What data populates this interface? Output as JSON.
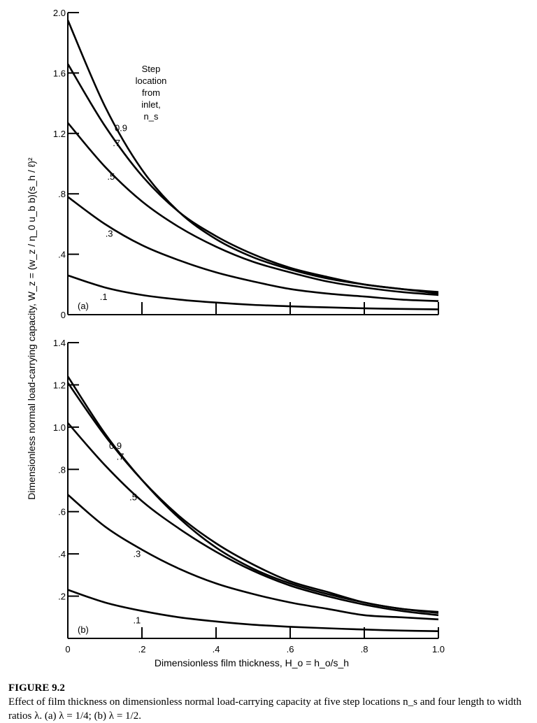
{
  "y_axis_label": "Dimensionless normal load-carrying capacity, W_z = (w_z / η_0 u_b b)(s_h / ℓ)²",
  "caption": {
    "heading": "FIGURE 9.2",
    "text": "Effect of film thickness on dimensionless normal load-carrying capacity at five step locations n_s and four length to width ratios λ. (a) λ = 1/4; (b) λ = 1/2."
  },
  "chart_data": [
    {
      "type": "line",
      "panel_label": "(a)",
      "legend_title": [
        "Step",
        "location",
        "from",
        "inlet,",
        "n_s"
      ],
      "xlim": [
        0,
        1.0
      ],
      "ylim": [
        0,
        2.0
      ],
      "x_ticks": [
        0.2,
        0.4,
        0.6,
        0.8
      ],
      "y_ticks": [
        "0",
        ".4",
        ".8",
        "1.2",
        "1.6",
        "2.0"
      ],
      "y_tick_values": [
        0,
        0.4,
        0.8,
        1.2,
        1.6,
        2.0
      ],
      "grid": false,
      "series": [
        {
          "name": "0.9",
          "x": [
            0,
            0.1,
            0.2,
            0.3,
            0.4,
            0.5,
            0.6,
            0.7,
            0.8,
            0.9,
            1.0
          ],
          "y": [
            1.95,
            1.38,
            0.96,
            0.68,
            0.5,
            0.38,
            0.3,
            0.24,
            0.2,
            0.17,
            0.15
          ]
        },
        {
          "name": ".7",
          "x": [
            0,
            0.1,
            0.2,
            0.3,
            0.4,
            0.5,
            0.6,
            0.7,
            0.8,
            0.9,
            1.0
          ],
          "y": [
            1.66,
            1.25,
            0.92,
            0.68,
            0.52,
            0.4,
            0.31,
            0.25,
            0.2,
            0.17,
            0.14
          ]
        },
        {
          "name": ".5",
          "x": [
            0,
            0.1,
            0.2,
            0.3,
            0.4,
            0.5,
            0.6,
            0.7,
            0.8,
            0.9,
            1.0
          ],
          "y": [
            1.27,
            0.98,
            0.75,
            0.58,
            0.45,
            0.35,
            0.28,
            0.22,
            0.18,
            0.15,
            0.13
          ]
        },
        {
          "name": ".3",
          "x": [
            0,
            0.1,
            0.2,
            0.3,
            0.4,
            0.5,
            0.6,
            0.7,
            0.8,
            0.9,
            1.0
          ],
          "y": [
            0.78,
            0.6,
            0.46,
            0.36,
            0.28,
            0.22,
            0.17,
            0.14,
            0.12,
            0.1,
            0.09
          ]
        },
        {
          "name": ".1",
          "x": [
            0,
            0.1,
            0.2,
            0.3,
            0.4,
            0.5,
            0.6,
            0.7,
            0.8,
            0.9,
            1.0
          ],
          "y": [
            0.26,
            0.18,
            0.13,
            0.1,
            0.08,
            0.065,
            0.055,
            0.048,
            0.042,
            0.038,
            0.035
          ]
        }
      ],
      "label_positions_x": {
        "0.9": 0.115,
        ".7": 0.11,
        ".5": 0.095,
        ".3": 0.09,
        ".1": 0.075
      }
    },
    {
      "type": "line",
      "panel_label": "(b)",
      "xlabel": "Dimensionless film thickness, H_o = h_o/s_h",
      "xlim": [
        0,
        1.0
      ],
      "ylim": [
        0,
        1.4
      ],
      "x_ticks": [
        "0",
        ".2",
        ".4",
        ".6",
        ".8",
        "1.0"
      ],
      "x_tick_values": [
        0,
        0.2,
        0.4,
        0.6,
        0.8,
        1.0
      ],
      "y_ticks": [
        ".2",
        ".4",
        ".6",
        ".8",
        "1.0",
        "1.2",
        "1.4"
      ],
      "y_tick_values": [
        0.2,
        0.4,
        0.6,
        0.8,
        1.0,
        1.2,
        1.4
      ],
      "grid": false,
      "series": [
        {
          "name": "0.9",
          "x": [
            0,
            0.1,
            0.2,
            0.3,
            0.4,
            0.5,
            0.6,
            0.7,
            0.8,
            0.9,
            1.0
          ],
          "y": [
            1.24,
            0.97,
            0.75,
            0.57,
            0.43,
            0.33,
            0.26,
            0.21,
            0.17,
            0.14,
            0.125
          ]
        },
        {
          "name": ".7",
          "x": [
            0,
            0.1,
            0.2,
            0.3,
            0.4,
            0.5,
            0.6,
            0.7,
            0.8,
            0.9,
            1.0
          ],
          "y": [
            1.21,
            0.96,
            0.75,
            0.58,
            0.45,
            0.35,
            0.27,
            0.22,
            0.17,
            0.14,
            0.12
          ]
        },
        {
          "name": ".5",
          "x": [
            0,
            0.1,
            0.2,
            0.3,
            0.4,
            0.5,
            0.6,
            0.7,
            0.8,
            0.9,
            1.0
          ],
          "y": [
            1.02,
            0.82,
            0.65,
            0.52,
            0.41,
            0.32,
            0.25,
            0.2,
            0.16,
            0.13,
            0.11
          ]
        },
        {
          "name": ".3",
          "x": [
            0,
            0.1,
            0.2,
            0.3,
            0.4,
            0.5,
            0.6,
            0.7,
            0.8,
            0.9,
            1.0
          ],
          "y": [
            0.68,
            0.53,
            0.42,
            0.33,
            0.26,
            0.21,
            0.17,
            0.14,
            0.11,
            0.1,
            0.09
          ]
        },
        {
          "name": ".1",
          "x": [
            0,
            0.1,
            0.2,
            0.3,
            0.4,
            0.5,
            0.6,
            0.7,
            0.8,
            0.9,
            1.0
          ],
          "y": [
            0.23,
            0.17,
            0.13,
            0.1,
            0.08,
            0.065,
            0.055,
            0.048,
            0.042,
            0.037,
            0.034
          ]
        }
      ],
      "label_positions_x": {
        "0.9": 0.1,
        ".7": 0.12,
        ".5": 0.155,
        ".3": 0.165,
        ".1": 0.165
      }
    }
  ]
}
